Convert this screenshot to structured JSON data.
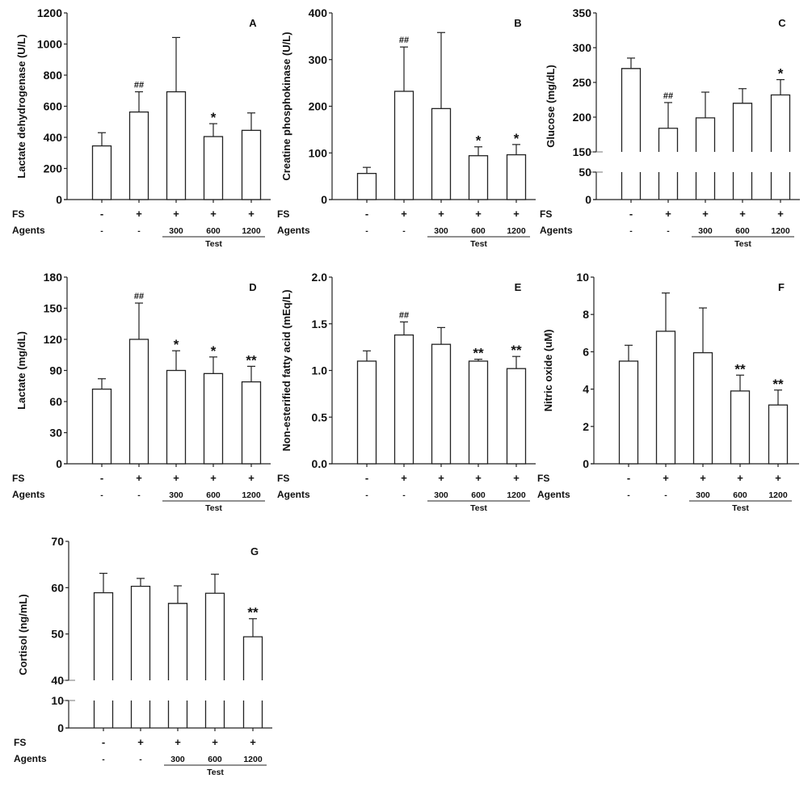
{
  "row_labels": {
    "fs": "FS",
    "agents": "Agents"
  },
  "group_labels": {
    "fs": [
      "-",
      "+",
      "+",
      "+",
      "+"
    ],
    "agents": [
      "-",
      "-",
      "300",
      "600",
      "1200"
    ],
    "bracket": "Test"
  },
  "chart_data": [
    {
      "id": "A",
      "type": "bar",
      "panel_label": "A",
      "ylabel": "Lactate dehydrogenase (U/L)",
      "ylim": [
        0,
        1200
      ],
      "yticks": [
        0,
        200,
        400,
        600,
        800,
        1000,
        1200
      ],
      "categories": [
        "FS- Agents-",
        "FS+ Agents-",
        "FS+ Test 300",
        "FS+ Test 600",
        "FS+ Test 1200"
      ],
      "values": [
        345,
        563,
        693,
        405,
        445
      ],
      "error_upper": [
        430,
        693,
        1042,
        488,
        557
      ],
      "annotations": [
        "",
        "##",
        "",
        "*",
        ""
      ]
    },
    {
      "id": "B",
      "type": "bar",
      "panel_label": "B",
      "ylabel": "Creatine phosphokinase (U/L)",
      "ylim": [
        0,
        400
      ],
      "yticks": [
        0,
        100,
        200,
        300,
        400
      ],
      "categories": [
        "FS- Agents-",
        "FS+ Agents-",
        "FS+ Test 300",
        "FS+ Test 600",
        "FS+ Test 1200"
      ],
      "values": [
        56,
        232,
        195,
        94,
        96
      ],
      "error_upper": [
        69,
        327,
        358,
        113,
        118
      ],
      "annotations": [
        "",
        "##",
        "",
        "*",
        "*"
      ]
    },
    {
      "id": "C",
      "type": "bar",
      "panel_label": "C",
      "ylabel": "Glucose (mg/dL)",
      "ylim": [
        0,
        350
      ],
      "axis_break": [
        50,
        150
      ],
      "yticks": [
        0,
        50,
        150,
        200,
        250,
        300,
        350
      ],
      "categories": [
        "FS- Agents-",
        "FS+ Agents-",
        "FS+ Test 300",
        "FS+ Test 600",
        "FS+ Test 1200"
      ],
      "values": [
        270,
        184,
        199,
        220,
        232
      ],
      "error_upper": [
        285,
        221,
        236,
        241,
        254
      ],
      "annotations": [
        "",
        "##",
        "",
        "",
        "*"
      ]
    },
    {
      "id": "D",
      "type": "bar",
      "panel_label": "D",
      "ylabel": "Lactate (mg/dL)",
      "ylim": [
        0,
        180
      ],
      "yticks": [
        0,
        30,
        60,
        90,
        120,
        150,
        180
      ],
      "categories": [
        "FS- Agents-",
        "FS+ Agents-",
        "FS+ Test 300",
        "FS+ Test 600",
        "FS+ Test 1200"
      ],
      "values": [
        72,
        120,
        90,
        87,
        79
      ],
      "error_upper": [
        82,
        155,
        109,
        103,
        94
      ],
      "annotations": [
        "",
        "##",
        "*",
        "*",
        "**"
      ]
    },
    {
      "id": "E",
      "type": "bar",
      "panel_label": "E",
      "ylabel": "Non-esterified fatty acid (mEq/L)",
      "ylim": [
        0,
        2.0
      ],
      "yticks": [
        "0.0",
        "0.5",
        "1.0",
        "1.5",
        "2.0"
      ],
      "categories": [
        "FS- Agents-",
        "FS+ Agents-",
        "FS+ Test 300",
        "FS+ Test 600",
        "FS+ Test 1200"
      ],
      "values": [
        1.1,
        1.38,
        1.28,
        1.1,
        1.02
      ],
      "error_upper": [
        1.21,
        1.52,
        1.46,
        1.12,
        1.15
      ],
      "annotations": [
        "",
        "##",
        "",
        "**",
        "**"
      ]
    },
    {
      "id": "F",
      "type": "bar",
      "panel_label": "F",
      "ylabel": "Nitric oxide (uM)",
      "ylim": [
        0,
        10
      ],
      "yticks": [
        0,
        2,
        4,
        6,
        8,
        10
      ],
      "categories": [
        "FS- Agents-",
        "FS+ Agents-",
        "FS+ Test 300",
        "FS+ Test 600",
        "FS+ Test 1200"
      ],
      "values": [
        5.5,
        7.1,
        5.95,
        3.9,
        3.15
      ],
      "error_upper": [
        6.35,
        9.15,
        8.35,
        4.75,
        3.95
      ],
      "annotations": [
        "",
        "",
        "",
        "**",
        "**"
      ]
    },
    {
      "id": "G",
      "type": "bar",
      "panel_label": "G",
      "ylabel": "Cortisol (ng/mL)",
      "ylim": [
        0,
        70
      ],
      "axis_break": [
        10,
        40
      ],
      "yticks": [
        0,
        10,
        40,
        50,
        60,
        70
      ],
      "categories": [
        "FS- Agents-",
        "FS+ Agents-",
        "FS+ Test 300",
        "FS+ Test 600",
        "FS+ Test 1200"
      ],
      "values": [
        58.9,
        60.3,
        56.6,
        58.8,
        49.4
      ],
      "error_upper": [
        63.1,
        62.0,
        60.4,
        62.9,
        53.3
      ],
      "annotations": [
        "",
        "",
        "",
        "",
        "**"
      ]
    }
  ]
}
